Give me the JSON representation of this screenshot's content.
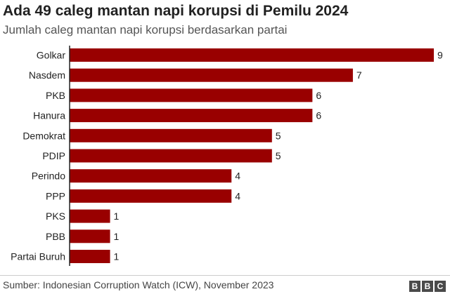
{
  "chart_data": {
    "type": "bar",
    "orientation": "horizontal",
    "title": "Ada 49 caleg mantan napi korupsi di Pemilu 2024",
    "subtitle": "Jumlah caleg mantan napi korupsi berdasarkan partai",
    "categories": [
      "Golkar",
      "Nasdem",
      "PKB",
      "Hanura",
      "Demokrat",
      "PDIP",
      "Perindo",
      "PPP",
      "PKS",
      "PBB",
      "Partai Buruh"
    ],
    "values": [
      9,
      7,
      6,
      6,
      5,
      5,
      4,
      4,
      1,
      1,
      1
    ],
    "xlim": [
      0,
      9
    ],
    "grid": false,
    "bar_color": "#990000"
  },
  "footer": {
    "source": "Sumber: Indonesian Corruption Watch (ICW), November 2023",
    "logo": [
      "B",
      "B",
      "C"
    ]
  }
}
